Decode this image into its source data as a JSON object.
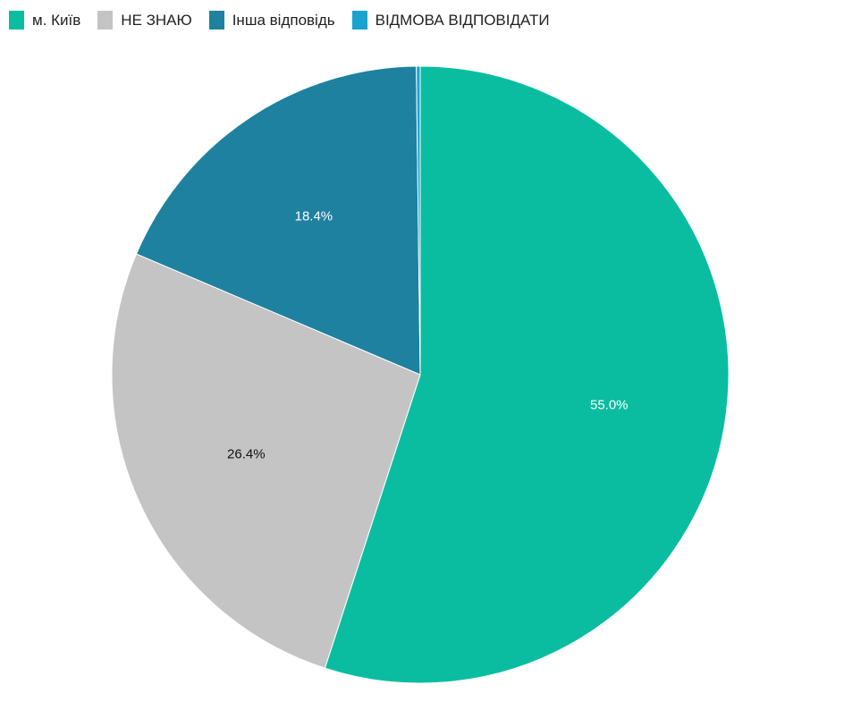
{
  "chart_data": {
    "type": "pie",
    "legend_position": "top-left",
    "start_angle": "top",
    "direction": "clockwise",
    "slices": [
      {
        "name": "м. Київ",
        "value": 55.0,
        "label": "55.0%",
        "color": "#0bbda0",
        "label_color": "#ffffff"
      },
      {
        "name": "НЕ ЗНАЮ",
        "value": 26.4,
        "label": "26.4%",
        "color": "#c4c4c4",
        "label_color": "#111111"
      },
      {
        "name": "Інша відповідь",
        "value": 18.4,
        "label": "18.4%",
        "color": "#1e81a0",
        "label_color": "#ffffff"
      },
      {
        "name": "ВІДМОВА ВІДПОВІДАТИ",
        "value": 0.2,
        "label": "",
        "color": "#1aa3cf",
        "label_color": "#ffffff"
      }
    ]
  }
}
